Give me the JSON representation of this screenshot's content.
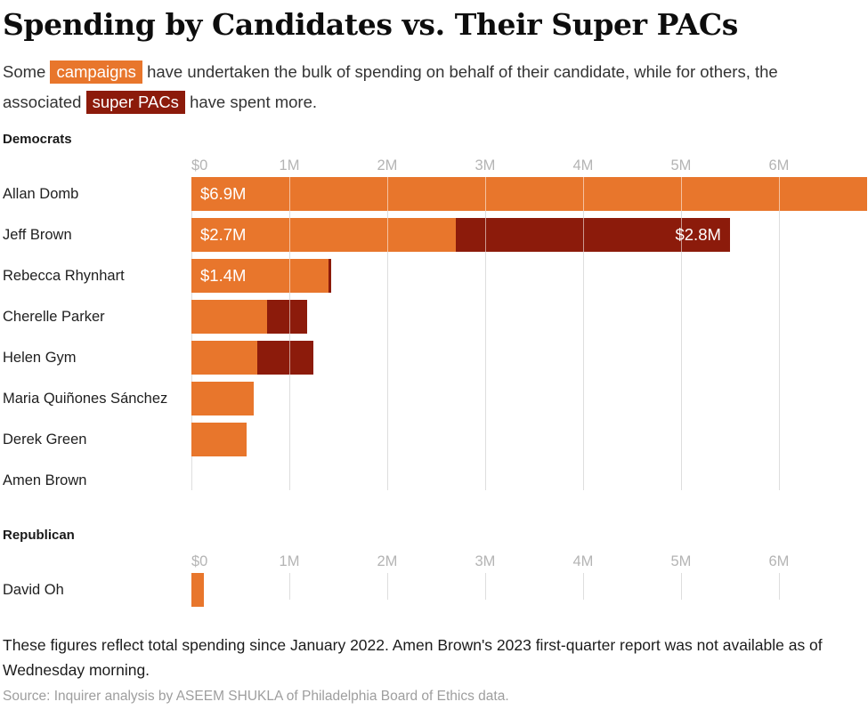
{
  "title": "Spending by Candidates vs. Their Super PACs",
  "subtitle": {
    "part1": "Some ",
    "highlight_campaigns": "campaigns",
    "part2": " have undertaken the bulk of spending on behalf of their candidate, while for others, the associated ",
    "highlight_super_pacs": "super PACs",
    "part3": " have spent more."
  },
  "colors": {
    "campaign": "#E8762C",
    "super_pac": "#8C1B0B",
    "gridline": "#DEDEDE",
    "axis_label": "#B4B4B4"
  },
  "chart_data": [
    {
      "type": "bar",
      "orientation": "horizontal",
      "group": "Democrats",
      "categories": [
        "Allan Domb",
        "Jeff Brown",
        "Rebecca Rhynhart",
        "Cherelle Parker",
        "Helen Gym",
        "Maria Quiñones Sánchez",
        "Derek Green",
        "Amen Brown"
      ],
      "series": [
        {
          "name": "Campaign spending (millions USD)",
          "color_key": "campaign",
          "values": [
            6.9,
            2.7,
            1.4,
            0.77,
            0.67,
            0.64,
            0.56,
            0
          ],
          "labels": [
            "$6.9M",
            "$2.7M",
            "$1.4M",
            "",
            "",
            "",
            "",
            ""
          ],
          "label_align": "left"
        },
        {
          "name": "Super PAC spending (millions USD)",
          "color_key": "super_pac",
          "values": [
            0,
            2.8,
            0.03,
            0.41,
            0.58,
            0,
            0,
            0
          ],
          "labels": [
            "",
            "$2.8M",
            "",
            "",
            "",
            "",
            "",
            ""
          ],
          "label_align": "right"
        }
      ],
      "x_tick_labels": [
        "$0",
        "1M",
        "2M",
        "3M",
        "4M",
        "5M",
        "6M"
      ],
      "x_tick_values": [
        0,
        1,
        2,
        3,
        4,
        5,
        6
      ],
      "xlim": [
        0,
        6.91
      ],
      "grid": true,
      "legend_position": "in-subtitle-highlights"
    },
    {
      "type": "bar",
      "orientation": "horizontal",
      "group": "Republican",
      "categories": [
        "David Oh"
      ],
      "series": [
        {
          "name": "Campaign spending (millions USD)",
          "color_key": "campaign",
          "values": [
            0.13
          ],
          "labels": [
            ""
          ],
          "label_align": "left"
        },
        {
          "name": "Super PAC spending (millions USD)",
          "color_key": "super_pac",
          "values": [
            0
          ],
          "labels": [
            ""
          ],
          "label_align": "right"
        }
      ],
      "x_tick_labels": [
        "$0",
        "1M",
        "2M",
        "3M",
        "4M",
        "5M",
        "6M"
      ],
      "x_tick_values": [
        0,
        1,
        2,
        3,
        4,
        5,
        6
      ],
      "xlim": [
        0,
        6.91
      ],
      "grid": true
    }
  ],
  "notes": "These figures reflect total spending since January 2022. Amen Brown's 2023 first-quarter report was not available as of Wednesday morning.",
  "source": "Source: Inquirer analysis by ASEEM SHUKLA of Philadelphia Board of Ethics data."
}
